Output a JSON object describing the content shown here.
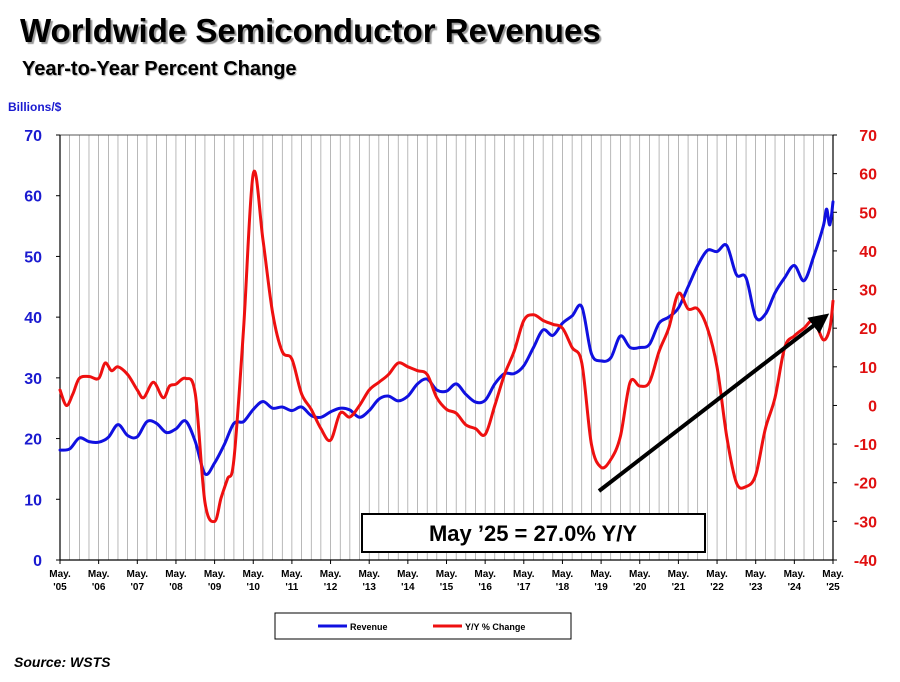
{
  "title": "Worldwide Semiconductor Revenues",
  "subtitle": "Year-to-Year Percent Change",
  "unit_label": "Billions/$",
  "source": "Source: WSTS",
  "annotation": "May ’25 = 27.0% Y/Y",
  "colors": {
    "revenue": "#1010e0",
    "yoy": "#ee1010",
    "left_axis": "#1a1ad0",
    "right_axis": "#e01010"
  },
  "chart_data": {
    "type": "line",
    "x_tick_labels": [
      [
        "May.",
        "'05"
      ],
      [
        "May.",
        "'06"
      ],
      [
        "May.",
        "'07"
      ],
      [
        "May.",
        "'08"
      ],
      [
        "May.",
        "'09"
      ],
      [
        "May.",
        "'10"
      ],
      [
        "May.",
        "'11"
      ],
      [
        "May.",
        "'12"
      ],
      [
        "May.",
        "'13"
      ],
      [
        "May.",
        "'14"
      ],
      [
        "May.",
        "'15"
      ],
      [
        "May.",
        "'16"
      ],
      [
        "May.",
        "'17"
      ],
      [
        "May.",
        "'18"
      ],
      [
        "May.",
        "'19"
      ],
      [
        "May.",
        "'20"
      ],
      [
        "May.",
        "'21"
      ],
      [
        "May.",
        "'22"
      ],
      [
        "May.",
        "'23"
      ],
      [
        "May.",
        "'24"
      ],
      [
        "May.",
        "'25"
      ]
    ],
    "y_left": {
      "label": "Billions/$",
      "range": [
        0,
        70
      ],
      "ticks": [
        "0",
        "10",
        "20",
        "30",
        "40",
        "50",
        "60",
        "70"
      ]
    },
    "y_right": {
      "range": [
        -40,
        70
      ],
      "ticks": [
        "-40",
        "-30",
        "-20",
        "-10",
        "0",
        "10",
        "20",
        "30",
        "40",
        "50",
        "60",
        "70"
      ]
    },
    "grid": "vertical",
    "legend_position": "bottom-center",
    "series": [
      {
        "name": "Revenue",
        "axis": "left",
        "points": [
          [
            "2005-05",
            18.1
          ],
          [
            "2005-08",
            18.3
          ],
          [
            "2005-11",
            20.1
          ],
          [
            "2006-02",
            19.5
          ],
          [
            "2006-05",
            19.4
          ],
          [
            "2006-08",
            20.2
          ],
          [
            "2006-11",
            22.3
          ],
          [
            "2007-02",
            20.5
          ],
          [
            "2007-05",
            20.3
          ],
          [
            "2007-08",
            22.8
          ],
          [
            "2007-11",
            22.5
          ],
          [
            "2008-02",
            21.0
          ],
          [
            "2008-05",
            21.6
          ],
          [
            "2008-08",
            22.9
          ],
          [
            "2008-11",
            19.5
          ],
          [
            "2009-02",
            14.2
          ],
          [
            "2009-05",
            16.0
          ],
          [
            "2009-08",
            19.0
          ],
          [
            "2009-11",
            22.5
          ],
          [
            "2010-02",
            22.8
          ],
          [
            "2010-05",
            24.8
          ],
          [
            "2010-08",
            26.1
          ],
          [
            "2010-11",
            25.0
          ],
          [
            "2011-02",
            25.2
          ],
          [
            "2011-05",
            24.6
          ],
          [
            "2011-08",
            25.2
          ],
          [
            "2011-11",
            23.8
          ],
          [
            "2012-02",
            23.5
          ],
          [
            "2012-05",
            24.4
          ],
          [
            "2012-08",
            25.0
          ],
          [
            "2012-11",
            24.7
          ],
          [
            "2013-02",
            23.5
          ],
          [
            "2013-05",
            24.6
          ],
          [
            "2013-08",
            26.5
          ],
          [
            "2013-11",
            27.0
          ],
          [
            "2014-02",
            26.2
          ],
          [
            "2014-05",
            27.0
          ],
          [
            "2014-08",
            29.0
          ],
          [
            "2014-11",
            29.8
          ],
          [
            "2015-02",
            28.0
          ],
          [
            "2015-05",
            27.8
          ],
          [
            "2015-08",
            29.0
          ],
          [
            "2015-11",
            27.3
          ],
          [
            "2016-02",
            26.0
          ],
          [
            "2016-05",
            26.3
          ],
          [
            "2016-08",
            29.0
          ],
          [
            "2016-11",
            30.7
          ],
          [
            "2017-02",
            30.7
          ],
          [
            "2017-05",
            32.0
          ],
          [
            "2017-08",
            35.0
          ],
          [
            "2017-11",
            37.9
          ],
          [
            "2018-02",
            37.0
          ],
          [
            "2018-05",
            39.0
          ],
          [
            "2018-08",
            40.2
          ],
          [
            "2018-11",
            41.7
          ],
          [
            "2019-02",
            34.0
          ],
          [
            "2019-05",
            32.8
          ],
          [
            "2019-08",
            33.3
          ],
          [
            "2019-11",
            36.9
          ],
          [
            "2020-02",
            35.0
          ],
          [
            "2020-05",
            35.0
          ],
          [
            "2020-08",
            35.5
          ],
          [
            "2020-11",
            39.0
          ],
          [
            "2021-02",
            40.0
          ],
          [
            "2021-05",
            41.5
          ],
          [
            "2021-08",
            45.0
          ],
          [
            "2021-11",
            48.5
          ],
          [
            "2022-02",
            51.0
          ],
          [
            "2022-05",
            50.8
          ],
          [
            "2022-08",
            51.8
          ],
          [
            "2022-11",
            47.0
          ],
          [
            "2023-02",
            46.5
          ],
          [
            "2023-05",
            40.0
          ],
          [
            "2023-08",
            40.5
          ],
          [
            "2023-11",
            44.0
          ],
          [
            "2024-02",
            46.5
          ],
          [
            "2024-05",
            48.5
          ],
          [
            "2024-08",
            46.0
          ],
          [
            "2024-11",
            50.0
          ],
          [
            "2025-02",
            55.0
          ],
          [
            "2025-03",
            57.8
          ],
          [
            "2025-04",
            55.2
          ],
          [
            "2025-05",
            59.0
          ]
        ]
      },
      {
        "name": "Y/Y % Change",
        "axis": "right",
        "points": [
          [
            "2005-05",
            4.0
          ],
          [
            "2005-07",
            0.0
          ],
          [
            "2005-09",
            3.0
          ],
          [
            "2005-11",
            7.0
          ],
          [
            "2006-02",
            7.5
          ],
          [
            "2006-05",
            7.0
          ],
          [
            "2006-07",
            11.0
          ],
          [
            "2006-09",
            9.0
          ],
          [
            "2006-11",
            10.0
          ],
          [
            "2007-02",
            8.0
          ],
          [
            "2007-05",
            4.0
          ],
          [
            "2007-07",
            2.0
          ],
          [
            "2007-10",
            6.0
          ],
          [
            "2008-01",
            2.0
          ],
          [
            "2008-03",
            5.0
          ],
          [
            "2008-05",
            5.5
          ],
          [
            "2008-08",
            7.0
          ],
          [
            "2008-11",
            3.0
          ],
          [
            "2009-02",
            -25.0
          ],
          [
            "2009-05",
            -30.0
          ],
          [
            "2009-07",
            -24.0
          ],
          [
            "2009-09",
            -19.0
          ],
          [
            "2009-11",
            -14.0
          ],
          [
            "2010-02",
            20.0
          ],
          [
            "2010-05",
            60.0
          ],
          [
            "2010-08",
            43.0
          ],
          [
            "2010-11",
            24.0
          ],
          [
            "2011-02",
            14.0
          ],
          [
            "2011-05",
            12.0
          ],
          [
            "2011-08",
            3.0
          ],
          [
            "2011-11",
            -1.0
          ],
          [
            "2012-02",
            -6.0
          ],
          [
            "2012-05",
            -9.0
          ],
          [
            "2012-08",
            -2.0
          ],
          [
            "2012-11",
            -3.0
          ],
          [
            "2013-02",
            0.0
          ],
          [
            "2013-05",
            4.0
          ],
          [
            "2013-08",
            6.0
          ],
          [
            "2013-11",
            8.0
          ],
          [
            "2014-02",
            11.0
          ],
          [
            "2014-05",
            10.0
          ],
          [
            "2014-08",
            9.0
          ],
          [
            "2014-11",
            8.0
          ],
          [
            "2015-02",
            2.0
          ],
          [
            "2015-05",
            -1.0
          ],
          [
            "2015-08",
            -2.0
          ],
          [
            "2015-11",
            -5.0
          ],
          [
            "2016-02",
            -6.0
          ],
          [
            "2016-05",
            -7.5
          ],
          [
            "2016-08",
            0.0
          ],
          [
            "2016-11",
            8.0
          ],
          [
            "2017-02",
            14.0
          ],
          [
            "2017-05",
            22.0
          ],
          [
            "2017-08",
            23.5
          ],
          [
            "2017-11",
            22.0
          ],
          [
            "2018-02",
            21.0
          ],
          [
            "2018-05",
            20.0
          ],
          [
            "2018-08",
            15.0
          ],
          [
            "2018-11",
            11.0
          ],
          [
            "2019-02",
            -10.0
          ],
          [
            "2019-05",
            -16.0
          ],
          [
            "2019-08",
            -14.0
          ],
          [
            "2019-11",
            -8.0
          ],
          [
            "2020-02",
            6.0
          ],
          [
            "2020-05",
            5.0
          ],
          [
            "2020-08",
            6.0
          ],
          [
            "2020-11",
            14.0
          ],
          [
            "2021-02",
            20.0
          ],
          [
            "2021-05",
            29.0
          ],
          [
            "2021-08",
            25.0
          ],
          [
            "2021-11",
            25.0
          ],
          [
            "2022-02",
            20.0
          ],
          [
            "2022-05",
            10.0
          ],
          [
            "2022-08",
            -8.0
          ],
          [
            "2022-11",
            -20.0
          ],
          [
            "2023-02",
            -21.0
          ],
          [
            "2023-05",
            -18.0
          ],
          [
            "2023-08",
            -6.0
          ],
          [
            "2023-11",
            2.0
          ],
          [
            "2024-02",
            15.0
          ],
          [
            "2024-05",
            18.0
          ],
          [
            "2024-08",
            20.0
          ],
          [
            "2024-11",
            22.0
          ],
          [
            "2025-02",
            17.0
          ],
          [
            "2025-04",
            20.0
          ],
          [
            "2025-05",
            27.0
          ]
        ]
      }
    ]
  }
}
